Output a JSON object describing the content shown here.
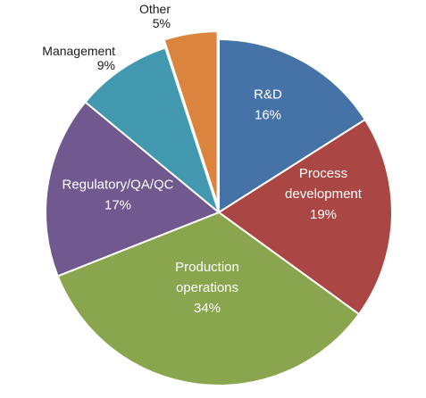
{
  "chart_data": {
    "type": "pie",
    "categories": [
      "R&D",
      "Process development",
      "Production operations",
      "Regulatory/QA/QC",
      "Management",
      "Other"
    ],
    "values": [
      16,
      19,
      34,
      17,
      9,
      5
    ],
    "unit": "%",
    "labels": [
      {
        "lines": [
          "R&D"
        ],
        "value_text": "16%"
      },
      {
        "lines": [
          "Process",
          "development"
        ],
        "value_text": "19%"
      },
      {
        "lines": [
          "Production",
          "operations"
        ],
        "value_text": "34%"
      },
      {
        "lines": [
          "Regulatory/QA/QC"
        ],
        "value_text": "17%"
      },
      {
        "lines": [
          "Management"
        ],
        "value_text": "9%"
      },
      {
        "lines": [
          "Other"
        ],
        "value_text": "5%"
      }
    ],
    "colors": [
      "#4572a7",
      "#aa4643",
      "#89a54e",
      "#71588f",
      "#4198af",
      "#db843d"
    ],
    "exploded": [
      "Other"
    ],
    "start": "12 o'clock",
    "direction": "clockwise",
    "legend": "none"
  }
}
